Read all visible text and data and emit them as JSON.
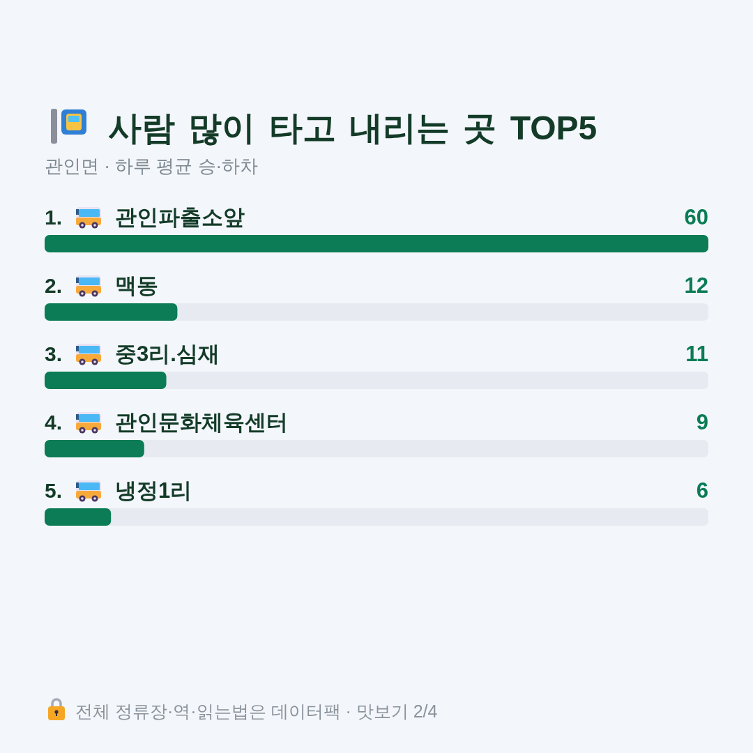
{
  "chart_data": {
    "type": "bar",
    "orientation": "horizontal",
    "title": "사람 많이 타고 내리는 곳 TOP5",
    "subtitle": "관인면 · 하루 평균 승·하차",
    "categories": [
      "1. 관인파출소앞",
      "2. 맥동",
      "3. 중3리.심재",
      "4. 관인문화체육센터",
      "5. 냉정1리"
    ],
    "values": [
      60,
      12,
      11,
      9,
      6
    ],
    "color": "#0b7c55",
    "xlim": [
      0,
      60
    ],
    "data_labels": true,
    "annotations": [
      "전체 정류장·역·읽는법은 데이터팩 · 맛보기 2/4"
    ]
  }
}
